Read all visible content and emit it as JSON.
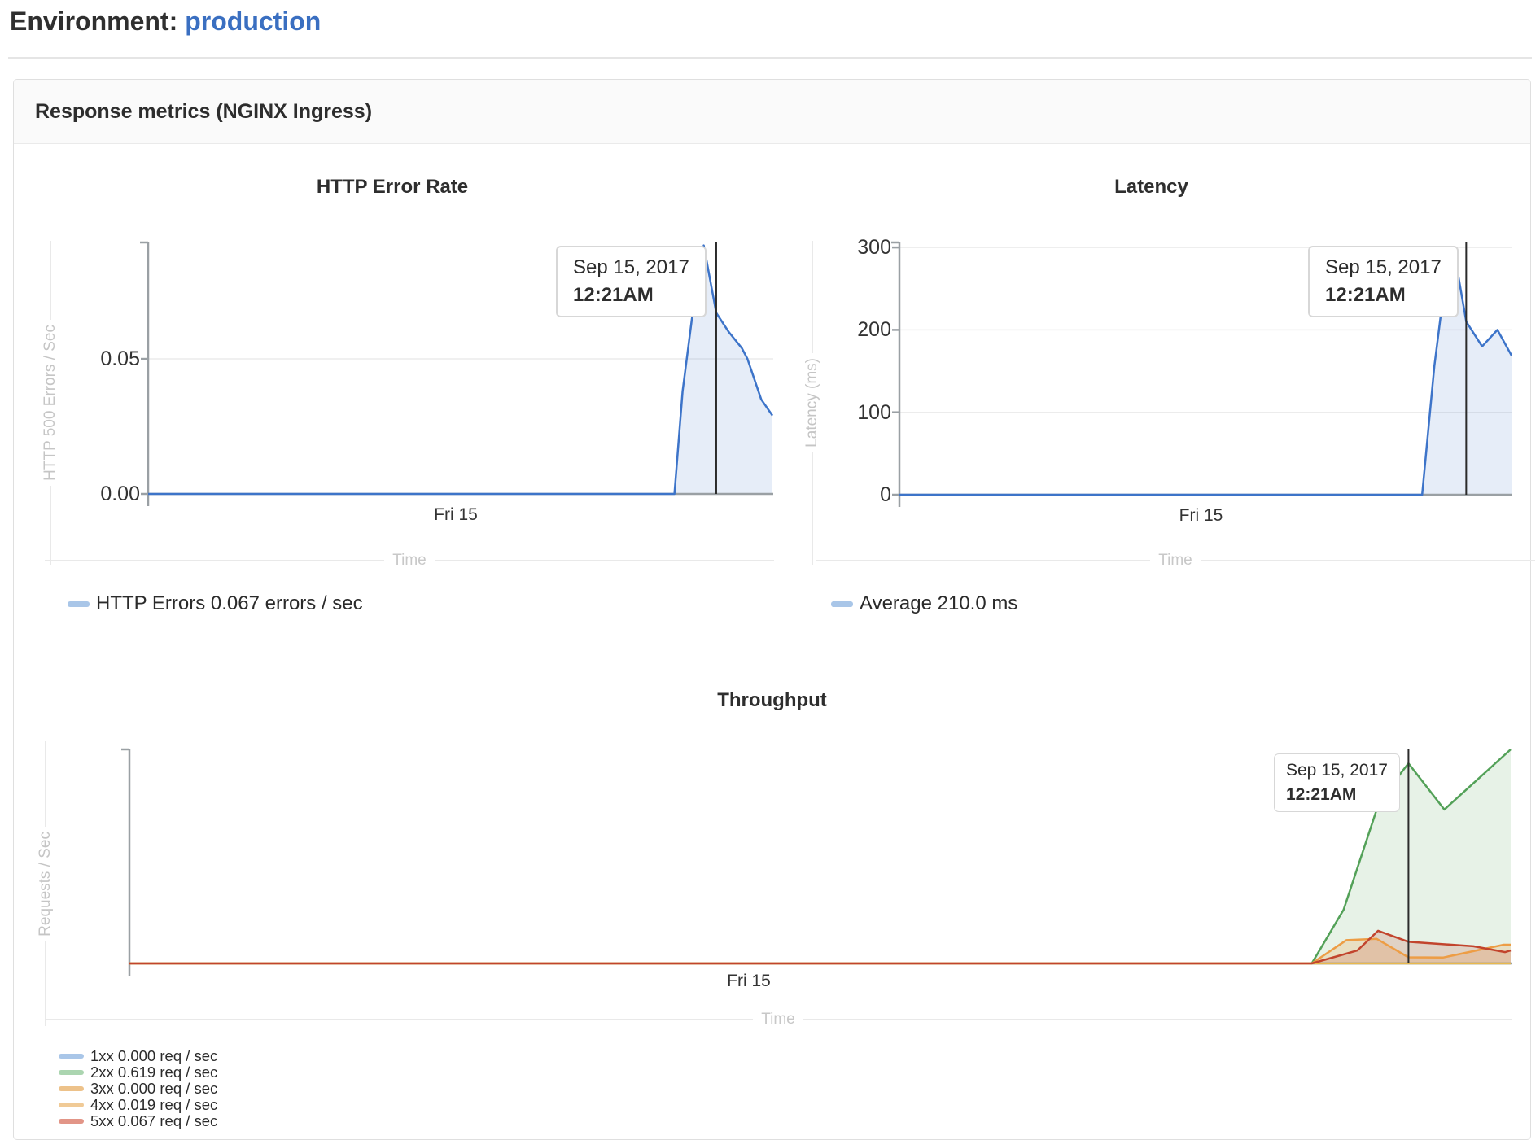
{
  "page": {
    "env_label": "Environment:",
    "env_name": "production"
  },
  "panel": {
    "title": "Response metrics (NGINX Ingress)"
  },
  "charts": [
    {
      "key": "c1",
      "title": "HTTP Error Rate",
      "y_label": "HTTP 500 Errors / Sec",
      "time_label": "Time",
      "x_tick": "Fri 15",
      "y_top": 0.0937,
      "y_ticks": [
        {
          "v": 0,
          "label": "0.00"
        },
        {
          "v": 0.05,
          "label": "0.05"
        }
      ],
      "cursor": 0.91,
      "tooltip": {
        "date": "Sep 15, 2017",
        "time": "12:21AM"
      },
      "series": [
        {
          "name": "HTTP Errors",
          "color": "#3d74c9",
          "fill": "rgba(61,116,201,0.13)",
          "points": [
            [
              0,
              0
            ],
            [
              0.843,
              0
            ],
            [
              0.856,
              0.038
            ],
            [
              0.871,
              0.065
            ],
            [
              0.89,
              0.092
            ],
            [
              0.91,
              0.067
            ],
            [
              0.93,
              0.06
            ],
            [
              0.951,
              0.054
            ],
            [
              0.96,
              0.05
            ],
            [
              0.982,
              0.035
            ],
            [
              1,
              0.029
            ]
          ]
        }
      ],
      "legend": [
        {
          "swatch": "#a9c6e8",
          "label": "HTTP Errors 0.067 errors / sec"
        }
      ]
    },
    {
      "key": "c2",
      "title": "Latency",
      "y_label": "Latency (ms)",
      "time_label": "Time",
      "x_tick": "Fri 15",
      "y_top": 308,
      "y_ticks": [
        {
          "v": 0,
          "label": "0"
        },
        {
          "v": 100,
          "label": "100"
        },
        {
          "v": 200,
          "label": "200"
        },
        {
          "v": 300,
          "label": "300"
        }
      ],
      "cursor": 0.926,
      "tooltip": {
        "date": "Sep 15, 2017",
        "time": "12:21AM"
      },
      "series": [
        {
          "name": "Average",
          "color": "#3d74c9",
          "fill": "rgba(61,116,201,0.13)",
          "points": [
            [
              0,
              0
            ],
            [
              0.854,
              0
            ],
            [
              0.874,
              156
            ],
            [
              0.894,
              274
            ],
            [
              0.905,
              300
            ],
            [
              0.926,
              210
            ],
            [
              0.952,
              180
            ],
            [
              0.977,
              200
            ],
            [
              1,
              169
            ]
          ]
        }
      ],
      "legend": [
        {
          "swatch": "#a9c6e8",
          "label": "Average 210.0 ms"
        }
      ]
    },
    {
      "key": "c3",
      "title": "Throughput",
      "y_label": "Requests / Sec",
      "time_label": "Time",
      "x_tick": "Fri 15",
      "y_top": 0.667,
      "y_ticks": [],
      "cursor": 0.926,
      "tooltip": {
        "date": "Sep 15, 2017",
        "time": "12:21AM"
      },
      "series": [
        {
          "name": "1xx",
          "color": "#5b8ed1",
          "fill": "rgba(91,142,209,0.12)",
          "points": [
            [
              0,
              0
            ],
            [
              1,
              0
            ]
          ]
        },
        {
          "name": "2xx",
          "color": "#53a158",
          "fill": "rgba(83,161,88,0.14)",
          "points": [
            [
              0,
              0
            ],
            [
              0.856,
              0
            ],
            [
              0.879,
              0.166
            ],
            [
              0.903,
              0.476
            ],
            [
              0.92,
              0.586
            ],
            [
              0.926,
              0.619
            ],
            [
              0.952,
              0.476
            ],
            [
              1,
              0.662
            ]
          ]
        },
        {
          "name": "3xx",
          "color": "#e9b84d",
          "fill": "rgba(233,184,77,0.15)",
          "points": [
            [
              0,
              0
            ],
            [
              1,
              0
            ]
          ]
        },
        {
          "name": "4xx",
          "color": "#ed9d45",
          "fill": "rgba(237,157,69,0.22)",
          "points": [
            [
              0,
              0
            ],
            [
              0.856,
              0
            ],
            [
              0.881,
              0.072
            ],
            [
              0.903,
              0.076
            ],
            [
              0.926,
              0.019
            ],
            [
              0.951,
              0.018
            ],
            [
              0.995,
              0.058
            ],
            [
              1,
              0.058
            ]
          ]
        },
        {
          "name": "5xx",
          "color": "#c2442d",
          "fill": "rgba(194,68,45,0.18)",
          "points": [
            [
              0,
              0
            ],
            [
              0.856,
              0
            ],
            [
              0.889,
              0.04
            ],
            [
              0.904,
              0.101
            ],
            [
              0.926,
              0.067
            ],
            [
              0.973,
              0.053
            ],
            [
              0.996,
              0.035
            ],
            [
              1,
              0.04
            ]
          ]
        }
      ],
      "legend": [
        {
          "swatch": "#a9c6e8",
          "label": "1xx 0.000 req / sec"
        },
        {
          "swatch": "#abd5b0",
          "label": "2xx 0.619 req / sec"
        },
        {
          "swatch": "#edc28a",
          "label": "3xx 0.000 req / sec"
        },
        {
          "swatch": "#f0ca96",
          "label": "4xx 0.019 req / sec"
        },
        {
          "swatch": "#e29587",
          "label": "5xx 0.067 req / sec"
        }
      ]
    }
  ],
  "chart_data": [
    {
      "type": "area",
      "title": "HTTP Error Rate",
      "xlabel": "Time",
      "ylabel": "HTTP 500 Errors / Sec",
      "x_ticks": [
        "Fri 15"
      ],
      "y_ticks": [
        0.0,
        0.05
      ],
      "cursor_time": "Sep 15, 2017 12:21AM",
      "series": [
        {
          "name": "HTTP Errors",
          "unit": "errors / sec",
          "value_at_cursor": 0.067,
          "approx_peak": 0.092,
          "baseline": 0
        }
      ]
    },
    {
      "type": "area",
      "title": "Latency",
      "xlabel": "Time",
      "ylabel": "Latency (ms)",
      "x_ticks": [
        "Fri 15"
      ],
      "y_ticks": [
        0,
        100,
        200,
        300
      ],
      "cursor_time": "Sep 15, 2017 12:21AM",
      "series": [
        {
          "name": "Average",
          "unit": "ms",
          "value_at_cursor": 210.0,
          "approx_peak": 300,
          "baseline": 0
        }
      ]
    },
    {
      "type": "area",
      "title": "Throughput",
      "xlabel": "Time",
      "ylabel": "Requests / Sec",
      "x_ticks": [
        "Fri 15"
      ],
      "cursor_time": "Sep 15, 2017 12:21AM",
      "series": [
        {
          "name": "1xx",
          "unit": "req / sec",
          "value_at_cursor": 0.0
        },
        {
          "name": "2xx",
          "unit": "req / sec",
          "value_at_cursor": 0.619
        },
        {
          "name": "3xx",
          "unit": "req / sec",
          "value_at_cursor": 0.0
        },
        {
          "name": "4xx",
          "unit": "req / sec",
          "value_at_cursor": 0.019
        },
        {
          "name": "5xx",
          "unit": "req / sec",
          "value_at_cursor": 0.067
        }
      ]
    }
  ]
}
